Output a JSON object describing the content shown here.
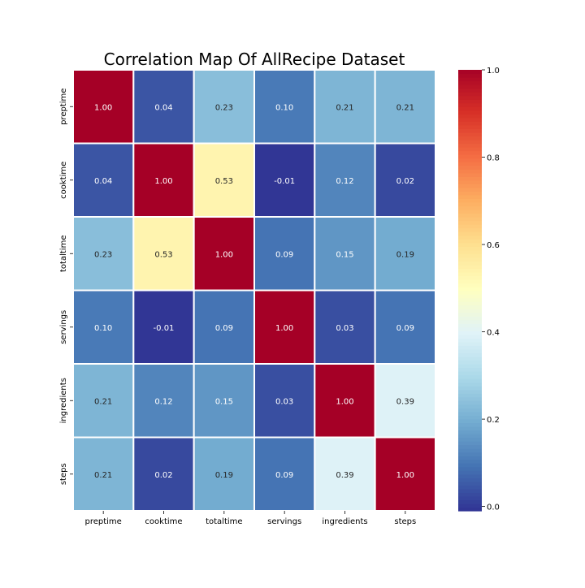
{
  "chart_data": {
    "type": "heatmap",
    "title": "Correlation Map  Of AllRecipe Dataset",
    "xlabel": "",
    "ylabel": "",
    "row_labels": [
      "preptime",
      "cooktime",
      "totaltime",
      "servings",
      "ingredients",
      "steps"
    ],
    "col_labels": [
      "preptime",
      "cooktime",
      "totaltime",
      "servings",
      "ingredients",
      "steps"
    ],
    "values": [
      [
        1.0,
        0.04,
        0.23,
        0.1,
        0.21,
        0.21
      ],
      [
        0.04,
        1.0,
        0.53,
        -0.01,
        0.12,
        0.02
      ],
      [
        0.23,
        0.53,
        1.0,
        0.09,
        0.15,
        0.19
      ],
      [
        0.1,
        -0.01,
        0.09,
        1.0,
        0.03,
        0.09
      ],
      [
        0.21,
        0.12,
        0.15,
        0.03,
        1.0,
        0.39
      ],
      [
        0.21,
        0.02,
        0.19,
        0.09,
        0.39,
        1.0
      ]
    ],
    "value_labels": [
      [
        "1.00",
        "0.04",
        "0.23",
        "0.10",
        "0.21",
        "0.21"
      ],
      [
        "0.04",
        "1.00",
        "0.53",
        "-0.01",
        "0.12",
        "0.02"
      ],
      [
        "0.23",
        "0.53",
        "1.00",
        "0.09",
        "0.15",
        "0.19"
      ],
      [
        "0.10",
        "-0.01",
        "0.09",
        "1.00",
        "0.03",
        "0.09"
      ],
      [
        "0.21",
        "0.12",
        "0.15",
        "0.03",
        "1.00",
        "0.39"
      ],
      [
        "0.21",
        "0.02",
        "0.19",
        "0.09",
        "0.39",
        "1.00"
      ]
    ],
    "colormap": "RdYlBu_r",
    "vmin": -0.01,
    "vmax": 1.0,
    "colorbar": {
      "ticks": [
        0.0,
        0.2,
        0.4,
        0.6,
        0.8,
        1.0
      ],
      "tick_labels": [
        "0.0",
        "0.2",
        "0.4",
        "0.6",
        "0.8",
        "1.0"
      ]
    },
    "cell_line_color": "#ffffff",
    "grid": false
  }
}
